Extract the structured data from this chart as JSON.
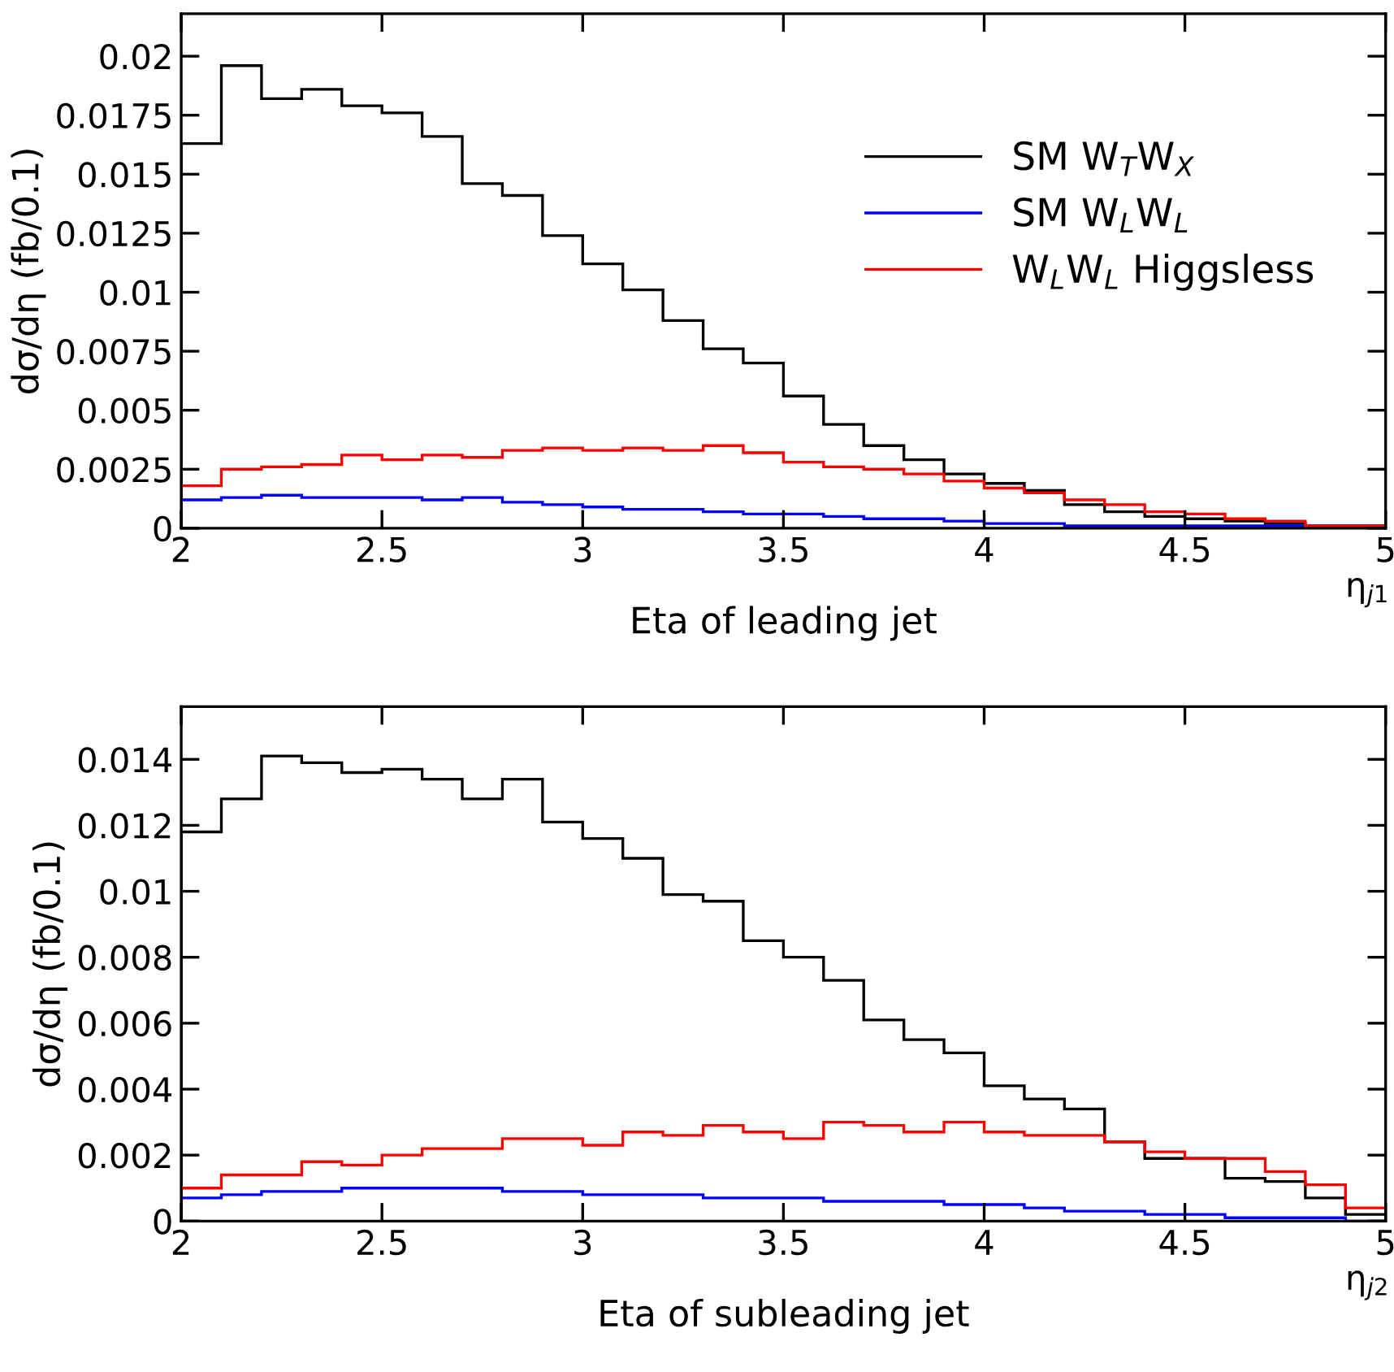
{
  "chart_data": [
    {
      "type": "histogram",
      "ylabel": "dσ/dη (fb/0.1)",
      "xlabel": "η$_{j1}$",
      "annotations": [
        "Eta of leading jet"
      ],
      "bins": [
        2.0,
        2.1,
        2.2,
        2.3,
        2.4,
        2.5,
        2.6,
        2.7,
        2.8,
        2.9,
        3.0,
        3.1,
        3.2,
        3.3,
        3.4,
        3.5,
        3.6,
        3.7,
        3.8,
        3.9,
        4.0,
        4.1,
        4.2,
        4.3,
        4.4,
        4.5,
        4.6,
        4.7,
        4.8,
        4.9,
        5.0
      ],
      "series": [
        {
          "name": "SM W$_{T}$W$_{X}$",
          "color": "#000000",
          "values": [
            0.0163,
            0.0196,
            0.0182,
            0.0186,
            0.0179,
            0.0176,
            0.0166,
            0.0146,
            0.0141,
            0.0124,
            0.0112,
            0.0101,
            0.0088,
            0.0076,
            0.007,
            0.0056,
            0.0044,
            0.0035,
            0.0029,
            0.0023,
            0.0019,
            0.0016,
            0.001,
            0.0007,
            0.0005,
            0.0004,
            0.0003,
            0.0002,
            0.0001,
            0.0001
          ]
        },
        {
          "name": "SM W$_{L}$W$_{L}$",
          "color": "#0000ff",
          "values": [
            0.0012,
            0.0013,
            0.0014,
            0.0013,
            0.0013,
            0.0013,
            0.0012,
            0.0013,
            0.0011,
            0.001,
            0.0009,
            0.0008,
            0.0008,
            0.0007,
            0.0006,
            0.0006,
            0.0005,
            0.0004,
            0.0004,
            0.0003,
            0.0002,
            0.0002,
            0.0001,
            0.0001,
            0.0001,
            0.0001,
            0.0001,
            0.0001,
            0.0001,
            0.0001
          ]
        },
        {
          "name": "W$_{L}$W$_{L}$ Higgsless",
          "color": "#ff0000",
          "values": [
            0.0018,
            0.0025,
            0.0026,
            0.0027,
            0.0031,
            0.0029,
            0.0031,
            0.003,
            0.0033,
            0.0034,
            0.0033,
            0.0034,
            0.0033,
            0.0035,
            0.0032,
            0.0028,
            0.0026,
            0.0025,
            0.0023,
            0.002,
            0.0017,
            0.0015,
            0.0012,
            0.001,
            0.0007,
            0.0006,
            0.0004,
            0.0003,
            0.0001,
            0.0001
          ]
        }
      ],
      "xlim": [
        2,
        5
      ],
      "xticks": [
        2,
        2.5,
        3,
        3.5,
        4,
        4.5,
        5
      ],
      "ylim": [
        0,
        0.0218
      ],
      "yticks": [
        0,
        0.0025,
        0.005,
        0.0075,
        0.01,
        0.0125,
        0.015,
        0.0175,
        0.02
      ],
      "legend": "top right",
      "grid": false
    },
    {
      "type": "histogram",
      "ylabel": "dσ/dη (fb/0.1)",
      "xlabel": "η$_{j2}$",
      "annotations": [
        "Eta of subleading jet"
      ],
      "bins": [
        2.0,
        2.1,
        2.2,
        2.3,
        2.4,
        2.5,
        2.6,
        2.7,
        2.8,
        2.9,
        3.0,
        3.1,
        3.2,
        3.3,
        3.4,
        3.5,
        3.6,
        3.7,
        3.8,
        3.9,
        4.0,
        4.1,
        4.2,
        4.3,
        4.4,
        4.5,
        4.6,
        4.7,
        4.8,
        4.9,
        5.0
      ],
      "series": [
        {
          "color": "#000000",
          "values": [
            0.0118,
            0.0128,
            0.0141,
            0.0139,
            0.0136,
            0.0137,
            0.0134,
            0.0128,
            0.0134,
            0.0121,
            0.0116,
            0.011,
            0.0099,
            0.0097,
            0.0085,
            0.008,
            0.0073,
            0.0061,
            0.0055,
            0.0051,
            0.0041,
            0.0037,
            0.0034,
            0.0024,
            0.0019,
            0.0019,
            0.0013,
            0.0012,
            0.0007,
            0.0002
          ]
        },
        {
          "color": "#0000ff",
          "values": [
            0.0007,
            0.0008,
            0.0009,
            0.0009,
            0.001,
            0.001,
            0.001,
            0.001,
            0.0009,
            0.0009,
            0.0008,
            0.0008,
            0.0008,
            0.0007,
            0.0007,
            0.0007,
            0.0006,
            0.0006,
            0.0006,
            0.0005,
            0.0005,
            0.0004,
            0.0003,
            0.0003,
            0.0002,
            0.0002,
            0.0001,
            0.0001,
            0.0001,
            0.0
          ]
        },
        {
          "color": "#ff0000",
          "values": [
            0.001,
            0.0014,
            0.0014,
            0.0018,
            0.0017,
            0.002,
            0.0022,
            0.0022,
            0.0025,
            0.0025,
            0.0023,
            0.0027,
            0.0026,
            0.0029,
            0.0027,
            0.0025,
            0.003,
            0.0029,
            0.0027,
            0.003,
            0.0027,
            0.0026,
            0.0026,
            0.0024,
            0.0021,
            0.0019,
            0.0019,
            0.0015,
            0.0011,
            0.0004
          ]
        }
      ],
      "xlim": [
        2,
        5
      ],
      "xticks": [
        2,
        2.5,
        3,
        3.5,
        4,
        4.5,
        5
      ],
      "ylim": [
        0,
        0.0156
      ],
      "yticks": [
        0,
        0.002,
        0.004,
        0.006,
        0.008,
        0.01,
        0.012,
        0.014
      ],
      "legend": false,
      "grid": false
    }
  ]
}
